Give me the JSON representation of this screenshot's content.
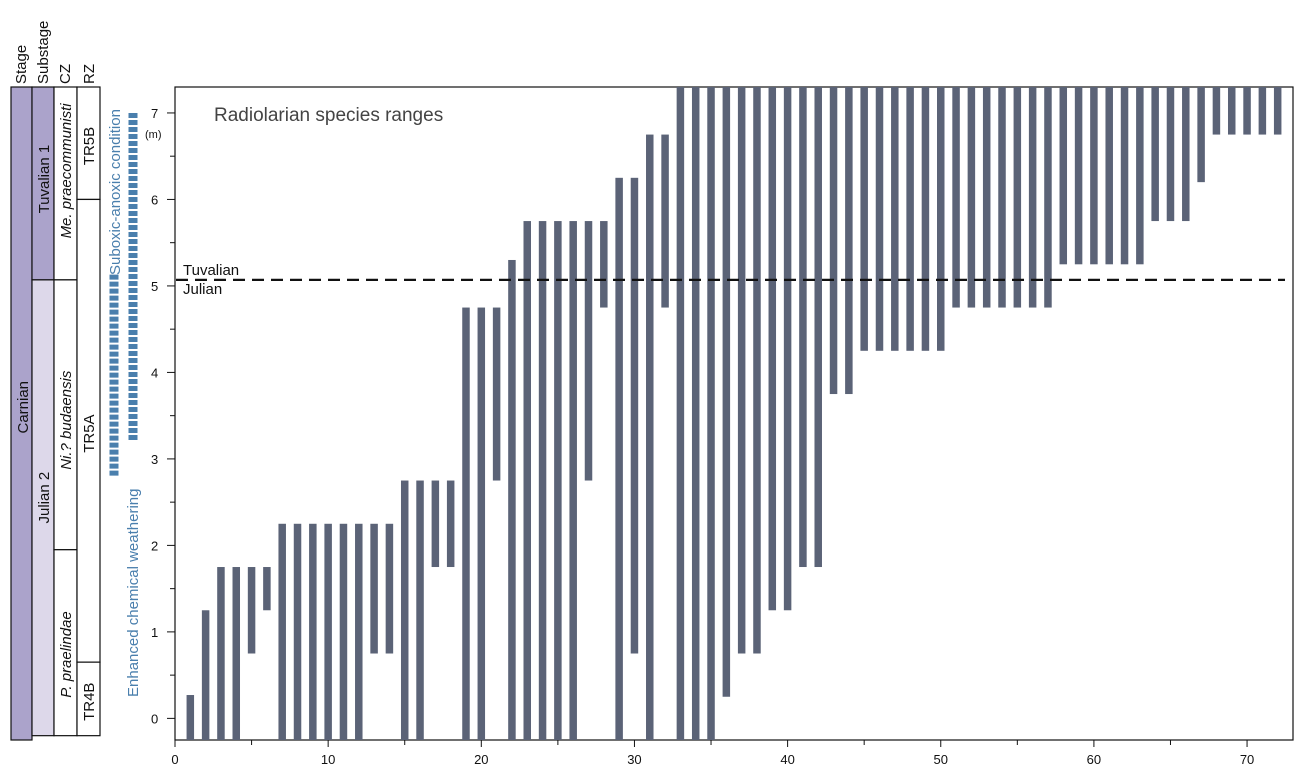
{
  "column_headers": {
    "stage": "Stage",
    "substage": "Substage",
    "cz": "CZ",
    "rz": "RZ"
  },
  "stage_label": "Carnian",
  "substages": [
    {
      "label": "Tuvalian 1",
      "from": 5.07,
      "to": 7.3
    },
    {
      "label": "Julian 2",
      "from": -0.2,
      "to": 5.07
    }
  ],
  "conodont_zones": [
    {
      "label_italic": "Me. praecommunisti",
      "label_plain": "",
      "from": 5.07,
      "to": 7.3
    },
    {
      "label_italic": "Ni.? budaensis",
      "label_plain": "",
      "from": 1.95,
      "to": 5.07
    },
    {
      "label_italic": "P. praelindae",
      "label_plain": "",
      "from": -0.2,
      "to": 1.95
    }
  ],
  "radiolarian_zones": [
    {
      "label": "TR5B",
      "from": 6.0,
      "to": 7.3
    },
    {
      "label": "TR5A",
      "from": 0.65,
      "to": 6.0
    },
    {
      "label": "TR4B",
      "from": -0.2,
      "to": 0.65
    }
  ],
  "events": {
    "weathering_label": "Enhanced chemical weathering",
    "weathering_range": [
      2.8,
      5.13
    ],
    "anoxia_label": "Suboxic-anoxic condition",
    "anoxia_range": [
      3.2,
      7.0
    ]
  },
  "colors": {
    "stage_fill": "#aba3cb",
    "substage_fill": "#ddd8ea",
    "bar": "#5b6377",
    "event": "#4a7fad"
  },
  "chart_data": {
    "type": "bar",
    "title": "Radiolarian species ranges",
    "ylabel": "(m)",
    "xlim": [
      0,
      73
    ],
    "ylim": [
      -0.25,
      7.3
    ],
    "xticks": [
      0,
      10,
      20,
      30,
      40,
      50,
      60,
      70
    ],
    "xticks_minor": [
      5,
      15,
      25,
      35,
      45,
      55,
      65
    ],
    "yticks": [
      0,
      1,
      2,
      3,
      4,
      5,
      6,
      7
    ],
    "boundary": {
      "y": 5.07,
      "label_above": "Tuvalian",
      "label_below": "Julian"
    },
    "ranges": [
      {
        "x": 1,
        "bottom": -0.25,
        "top": 0.27
      },
      {
        "x": 2,
        "bottom": -0.25,
        "top": 1.25
      },
      {
        "x": 3,
        "bottom": -0.25,
        "top": 1.75
      },
      {
        "x": 4,
        "bottom": -0.25,
        "top": 1.75
      },
      {
        "x": 5,
        "bottom": 0.75,
        "top": 1.75
      },
      {
        "x": 6,
        "bottom": 1.25,
        "top": 1.75
      },
      {
        "x": 7,
        "bottom": -0.25,
        "top": 2.25
      },
      {
        "x": 8,
        "bottom": -0.25,
        "top": 2.25
      },
      {
        "x": 9,
        "bottom": -0.25,
        "top": 2.25
      },
      {
        "x": 10,
        "bottom": -0.25,
        "top": 2.25
      },
      {
        "x": 11,
        "bottom": -0.25,
        "top": 2.25
      },
      {
        "x": 12,
        "bottom": -0.25,
        "top": 2.25
      },
      {
        "x": 13,
        "bottom": 0.75,
        "top": 2.25
      },
      {
        "x": 14,
        "bottom": 0.75,
        "top": 2.25
      },
      {
        "x": 15,
        "bottom": -0.25,
        "top": 2.75
      },
      {
        "x": 16,
        "bottom": -0.25,
        "top": 2.75
      },
      {
        "x": 17,
        "bottom": 1.75,
        "top": 2.75
      },
      {
        "x": 18,
        "bottom": 1.75,
        "top": 2.75
      },
      {
        "x": 19,
        "bottom": -0.25,
        "top": 4.75
      },
      {
        "x": 20,
        "bottom": -0.25,
        "top": 4.75
      },
      {
        "x": 21,
        "bottom": 2.75,
        "top": 4.75
      },
      {
        "x": 22,
        "bottom": -0.25,
        "top": 5.3
      },
      {
        "x": 23,
        "bottom": -0.25,
        "top": 5.75
      },
      {
        "x": 24,
        "bottom": -0.25,
        "top": 5.75
      },
      {
        "x": 25,
        "bottom": -0.25,
        "top": 5.75
      },
      {
        "x": 26,
        "bottom": -0.25,
        "top": 5.75
      },
      {
        "x": 27,
        "bottom": 2.75,
        "top": 5.75
      },
      {
        "x": 28,
        "bottom": 4.75,
        "top": 5.75
      },
      {
        "x": 29,
        "bottom": -0.25,
        "top": 6.25
      },
      {
        "x": 30,
        "bottom": 0.75,
        "top": 6.25
      },
      {
        "x": 31,
        "bottom": -0.25,
        "top": 6.75
      },
      {
        "x": 32,
        "bottom": 4.75,
        "top": 6.75
      },
      {
        "x": 33,
        "bottom": -0.25,
        "top": 7.3
      },
      {
        "x": 34,
        "bottom": -0.25,
        "top": 7.3
      },
      {
        "x": 35,
        "bottom": -0.25,
        "top": 7.3
      },
      {
        "x": 36,
        "bottom": 0.25,
        "top": 7.3
      },
      {
        "x": 37,
        "bottom": 0.75,
        "top": 7.3
      },
      {
        "x": 38,
        "bottom": 0.75,
        "top": 7.3
      },
      {
        "x": 39,
        "bottom": 1.25,
        "top": 7.3
      },
      {
        "x": 40,
        "bottom": 1.25,
        "top": 7.3
      },
      {
        "x": 41,
        "bottom": 1.75,
        "top": 7.3
      },
      {
        "x": 42,
        "bottom": 1.75,
        "top": 7.3
      },
      {
        "x": 43,
        "bottom": 3.75,
        "top": 7.3
      },
      {
        "x": 44,
        "bottom": 3.75,
        "top": 7.3
      },
      {
        "x": 45,
        "bottom": 4.25,
        "top": 7.3
      },
      {
        "x": 46,
        "bottom": 4.25,
        "top": 7.3
      },
      {
        "x": 47,
        "bottom": 4.25,
        "top": 7.3
      },
      {
        "x": 48,
        "bottom": 4.25,
        "top": 7.3
      },
      {
        "x": 49,
        "bottom": 4.25,
        "top": 7.3
      },
      {
        "x": 50,
        "bottom": 4.25,
        "top": 7.3
      },
      {
        "x": 51,
        "bottom": 4.75,
        "top": 7.3
      },
      {
        "x": 52,
        "bottom": 4.75,
        "top": 7.3
      },
      {
        "x": 53,
        "bottom": 4.75,
        "top": 7.3
      },
      {
        "x": 54,
        "bottom": 4.75,
        "top": 7.3
      },
      {
        "x": 55,
        "bottom": 4.75,
        "top": 7.3
      },
      {
        "x": 56,
        "bottom": 4.75,
        "top": 7.3
      },
      {
        "x": 57,
        "bottom": 4.75,
        "top": 7.3
      },
      {
        "x": 58,
        "bottom": 5.25,
        "top": 7.3
      },
      {
        "x": 59,
        "bottom": 5.25,
        "top": 7.3
      },
      {
        "x": 60,
        "bottom": 5.25,
        "top": 7.3
      },
      {
        "x": 61,
        "bottom": 5.25,
        "top": 7.3
      },
      {
        "x": 62,
        "bottom": 5.25,
        "top": 7.3
      },
      {
        "x": 63,
        "bottom": 5.25,
        "top": 7.3
      },
      {
        "x": 64,
        "bottom": 5.75,
        "top": 7.3
      },
      {
        "x": 65,
        "bottom": 5.75,
        "top": 7.3
      },
      {
        "x": 66,
        "bottom": 5.75,
        "top": 7.3
      },
      {
        "x": 67,
        "bottom": 6.2,
        "top": 7.3
      },
      {
        "x": 68,
        "bottom": 6.75,
        "top": 7.3
      },
      {
        "x": 69,
        "bottom": 6.75,
        "top": 7.3
      },
      {
        "x": 70,
        "bottom": 6.75,
        "top": 7.3
      },
      {
        "x": 71,
        "bottom": 6.75,
        "top": 7.3
      },
      {
        "x": 72,
        "bottom": 6.75,
        "top": 7.3
      }
    ]
  }
}
